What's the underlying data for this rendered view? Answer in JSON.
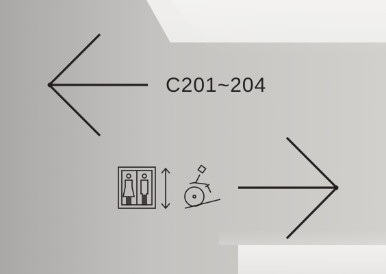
{
  "sign": {
    "room_range": "C201~204"
  },
  "icons": [
    "left-arrow-icon",
    "restroom-icon",
    "elevator-updown-icon",
    "wheelchair-ramp-icon",
    "right-arrow-icon"
  ],
  "colors": {
    "ink": "#231f20",
    "wall": "#c2c0be",
    "light": "#f2f1ef"
  }
}
